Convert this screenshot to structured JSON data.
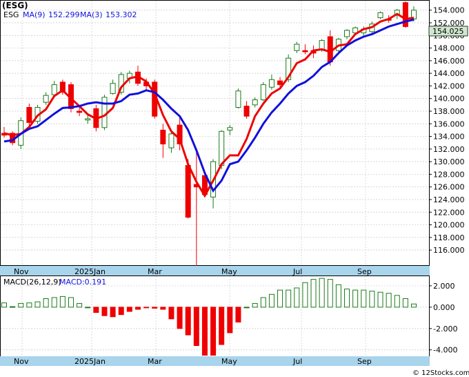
{
  "title": "(ESG)",
  "footer": "© 12Stocks.com",
  "colors": {
    "up": "#1a7a1a",
    "down": "#ee0000",
    "ma_fast": "#ee0000",
    "ma_slow": "#1010dd",
    "axis_band": "#a8d4ec",
    "grid": "#c8c8c8",
    "last_price_bg": "#cfe8cf",
    "text_blue": "#1010dd"
  },
  "price_legend": {
    "ticker": "ESG",
    "ma9_label": "MA(9)",
    "ma9_value": "152.299",
    "ma3_label": "MA(3)",
    "ma3_value": "153.302"
  },
  "last_price": "154.025",
  "macd_legend": {
    "label": "MACD(26,12,9)",
    "value_label": "MACD:0.191"
  },
  "chart_data": [
    {
      "type": "candlestick",
      "ylim": [
        113.5,
        155.5
      ],
      "y_ticks": [
        "116.000",
        "118.000",
        "120.000",
        "122.000",
        "124.000",
        "126.000",
        "128.000",
        "130.000",
        "132.000",
        "134.000",
        "136.000",
        "138.000",
        "140.000",
        "142.000",
        "144.000",
        "146.000",
        "148.000",
        "150.000",
        "152.000",
        "154.000"
      ],
      "x_labels": [
        "Nov",
        "2025Jan",
        "Mar",
        "May",
        "Jul",
        "Sep"
      ],
      "candles": [
        {
          "o": 134.5,
          "h": 135.5,
          "l": 133.8,
          "c": 134.2
        },
        {
          "o": 134.5,
          "h": 134.8,
          "l": 132.6,
          "c": 133.0
        },
        {
          "o": 132.6,
          "h": 137.0,
          "l": 132.0,
          "c": 136.5
        },
        {
          "o": 138.6,
          "h": 139.2,
          "l": 135.6,
          "c": 136.2
        },
        {
          "o": 136.4,
          "h": 139.0,
          "l": 136.0,
          "c": 138.6
        },
        {
          "o": 139.4,
          "h": 141.0,
          "l": 139.0,
          "c": 140.5
        },
        {
          "o": 140.6,
          "h": 142.8,
          "l": 140.2,
          "c": 142.2
        },
        {
          "o": 142.6,
          "h": 143.0,
          "l": 140.6,
          "c": 141.0
        },
        {
          "o": 142.2,
          "h": 142.6,
          "l": 137.8,
          "c": 138.4
        },
        {
          "o": 138.0,
          "h": 138.6,
          "l": 137.2,
          "c": 137.8
        },
        {
          "o": 136.6,
          "h": 137.4,
          "l": 136.0,
          "c": 136.8
        },
        {
          "o": 138.4,
          "h": 139.0,
          "l": 134.8,
          "c": 135.4
        },
        {
          "o": 135.4,
          "h": 140.6,
          "l": 135.0,
          "c": 140.2
        },
        {
          "o": 140.8,
          "h": 143.0,
          "l": 140.6,
          "c": 142.4
        },
        {
          "o": 141.0,
          "h": 144.2,
          "l": 140.6,
          "c": 143.8
        },
        {
          "o": 143.2,
          "h": 144.4,
          "l": 142.4,
          "c": 144.0
        },
        {
          "o": 144.2,
          "h": 145.2,
          "l": 142.0,
          "c": 142.4
        },
        {
          "o": 142.6,
          "h": 143.2,
          "l": 141.2,
          "c": 142.0
        },
        {
          "o": 142.6,
          "h": 143.0,
          "l": 136.8,
          "c": 137.2
        },
        {
          "o": 135.0,
          "h": 136.0,
          "l": 130.6,
          "c": 132.8
        },
        {
          "o": 132.2,
          "h": 135.0,
          "l": 131.4,
          "c": 134.4
        },
        {
          "o": 135.8,
          "h": 137.0,
          "l": 131.8,
          "c": 132.8
        },
        {
          "o": 129.4,
          "h": 130.4,
          "l": 121.0,
          "c": 121.2
        },
        {
          "o": 126.4,
          "h": 131.6,
          "l": 113.5,
          "c": 126.0
        },
        {
          "o": 127.8,
          "h": 128.2,
          "l": 124.4,
          "c": 124.8
        },
        {
          "o": 124.4,
          "h": 130.4,
          "l": 122.6,
          "c": 130.0
        },
        {
          "o": 129.4,
          "h": 135.0,
          "l": 128.8,
          "c": 134.8
        },
        {
          "o": 135.0,
          "h": 135.8,
          "l": 134.2,
          "c": 135.4
        },
        {
          "o": 138.6,
          "h": 141.6,
          "l": 138.4,
          "c": 141.2
        },
        {
          "o": 138.8,
          "h": 139.6,
          "l": 136.8,
          "c": 137.2
        },
        {
          "o": 139.0,
          "h": 140.2,
          "l": 138.6,
          "c": 139.8
        },
        {
          "o": 139.8,
          "h": 142.6,
          "l": 139.6,
          "c": 142.2
        },
        {
          "o": 141.8,
          "h": 143.8,
          "l": 141.4,
          "c": 143.0
        },
        {
          "o": 142.8,
          "h": 143.4,
          "l": 141.8,
          "c": 142.2
        },
        {
          "o": 143.0,
          "h": 147.0,
          "l": 142.6,
          "c": 146.4
        },
        {
          "o": 147.6,
          "h": 149.0,
          "l": 147.2,
          "c": 148.6
        },
        {
          "o": 147.6,
          "h": 148.6,
          "l": 147.0,
          "c": 147.4
        },
        {
          "o": 147.6,
          "h": 148.4,
          "l": 146.4,
          "c": 147.2
        },
        {
          "o": 147.8,
          "h": 149.4,
          "l": 147.4,
          "c": 149.2
        },
        {
          "o": 149.8,
          "h": 150.8,
          "l": 145.2,
          "c": 145.8
        },
        {
          "o": 147.6,
          "h": 149.6,
          "l": 147.0,
          "c": 149.4
        },
        {
          "o": 149.8,
          "h": 151.0,
          "l": 149.4,
          "c": 150.8
        },
        {
          "o": 150.4,
          "h": 151.4,
          "l": 150.2,
          "c": 151.2
        },
        {
          "o": 150.4,
          "h": 151.4,
          "l": 150.0,
          "c": 151.0
        },
        {
          "o": 150.6,
          "h": 152.2,
          "l": 150.2,
          "c": 151.8
        },
        {
          "o": 152.8,
          "h": 153.8,
          "l": 152.6,
          "c": 153.6
        },
        {
          "o": 152.6,
          "h": 153.2,
          "l": 152.0,
          "c": 152.4
        },
        {
          "o": 153.2,
          "h": 154.2,
          "l": 152.6,
          "c": 154.0
        },
        {
          "o": 155.2,
          "h": 155.4,
          "l": 151.2,
          "c": 151.4
        },
        {
          "o": 152.6,
          "h": 154.6,
          "l": 152.2,
          "c": 154.0
        }
      ],
      "ma3": [
        134.5,
        134.2,
        134.4,
        135.5,
        137.3,
        138.3,
        140.4,
        141.3,
        140.0,
        138.8,
        137.5,
        136.8,
        137.3,
        138.5,
        141.8,
        143.2,
        143.5,
        142.7,
        140.8,
        137.4,
        134.8,
        133.6,
        129.6,
        126.8,
        124.6,
        127.0,
        129.6,
        131.0,
        131.0,
        133.6,
        137.2,
        139.2,
        140.8,
        141.6,
        143.4,
        145.6,
        146.2,
        147.6,
        147.8,
        147.4,
        148.4,
        148.6,
        150.2,
        151.0,
        151.3,
        152.2,
        152.6,
        153.4,
        152.6,
        152.8
      ],
      "ma9": [
        133.2,
        133.4,
        134.4,
        135.2,
        135.6,
        136.6,
        137.6,
        138.5,
        138.6,
        138.8,
        139.2,
        139.4,
        139.2,
        139.2,
        139.6,
        140.6,
        140.8,
        141.3,
        141.0,
        139.8,
        138.4,
        137.2,
        135.0,
        131.8,
        128.2,
        125.4,
        127.0,
        129.6,
        130.0,
        131.8,
        133.8,
        136.0,
        137.8,
        139.2,
        140.8,
        142.0,
        142.6,
        143.6,
        145.0,
        145.8,
        147.2,
        148.4,
        149.2,
        149.8,
        150.2,
        150.8,
        151.4,
        151.8,
        152.2,
        152.5
      ]
    },
    {
      "type": "bar",
      "ylim": [
        -4.6,
        2.9
      ],
      "y_ticks": [
        "-4.000",
        "-2.000",
        "0.000",
        "2.000"
      ],
      "x_labels": [
        "Nov",
        "2025Jan",
        "Mar",
        "May",
        "Jul",
        "Sep"
      ],
      "values": [
        0.4,
        0.05,
        0.35,
        0.4,
        0.5,
        0.8,
        0.9,
        1.0,
        0.9,
        0.35,
        0.0,
        -0.5,
        -0.8,
        -0.9,
        -0.7,
        -0.4,
        -0.2,
        -0.05,
        -0.1,
        -0.2,
        -1.1,
        -2.0,
        -2.6,
        -3.6,
        -4.5,
        -4.5,
        -3.5,
        -2.4,
        -1.4,
        0.0,
        0.35,
        0.9,
        1.2,
        1.6,
        1.6,
        1.8,
        2.3,
        2.6,
        2.7,
        2.6,
        2.1,
        1.7,
        1.6,
        1.6,
        1.5,
        1.4,
        1.3,
        1.1,
        0.8,
        0.3
      ]
    }
  ]
}
